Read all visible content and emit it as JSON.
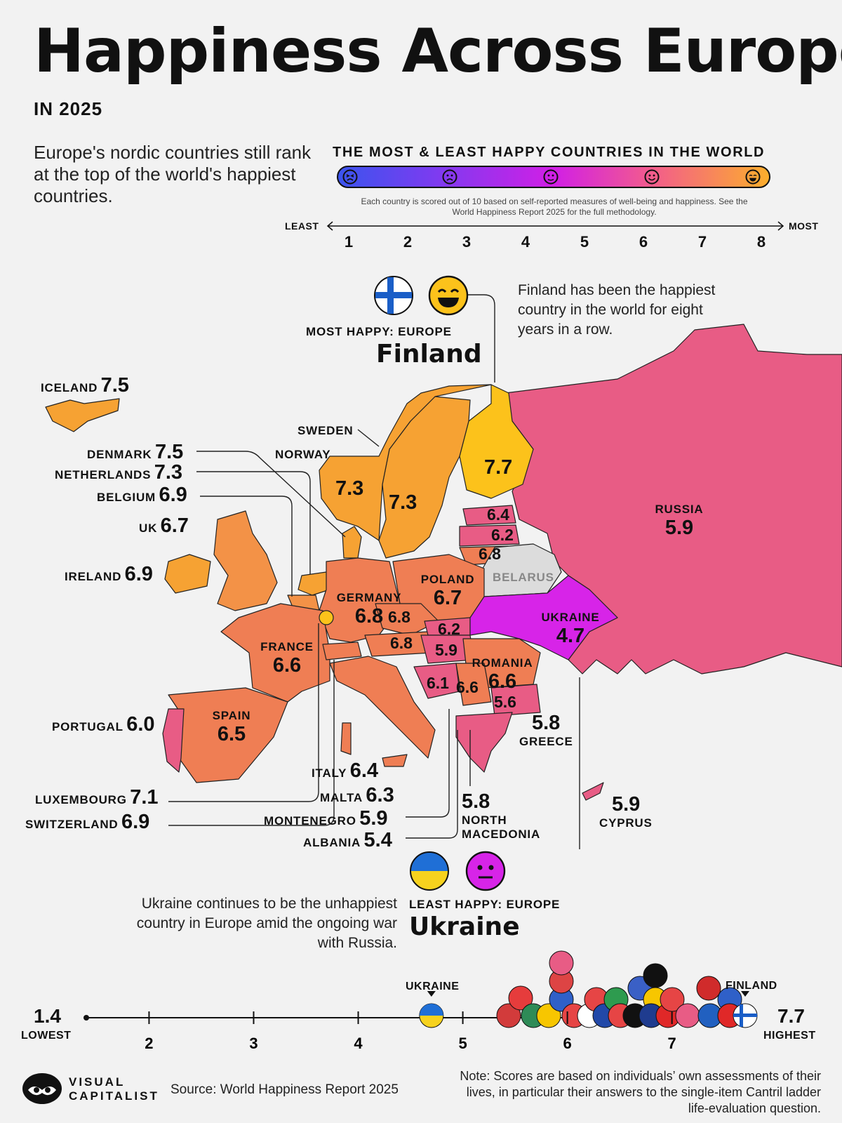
{
  "header": {
    "title": "Happiness Across Europe",
    "subtitle": "IN 2025",
    "intro": "Europe's nordic countries still rank at the top of the world's happiest countries."
  },
  "scale": {
    "title": "THE MOST & LEAST HAPPY COUNTRIES IN THE WORLD",
    "note": "Each country is scored out of 10 based on self-reported measures of well-being and happiness. See the World Happiness Report 2025 for the full methodology.",
    "least_label": "LEAST",
    "most_label": "MOST",
    "ticks": [
      "1",
      "2",
      "3",
      "4",
      "5",
      "6",
      "7",
      "8"
    ],
    "gradient_colors": [
      "#3b54ee",
      "#7b3cf0",
      "#d11fe6",
      "#f25a8f",
      "#fcae2c"
    ],
    "faces": [
      "tired-face-icon",
      "frowning-face-icon",
      "neutral-face-icon",
      "smiling-face-icon",
      "grinning-face-icon"
    ]
  },
  "callouts": {
    "most": {
      "heading": "MOST HAPPY: EUROPE",
      "country": "Finland",
      "text": "Finland has been the happiest country in the world for eight years in a row."
    },
    "least": {
      "heading": "LEAST HAPPY: EUROPE",
      "country": "Ukraine",
      "text": "Ukraine continues to be the unhappiest country in Europe amid the ongoing war with Russia."
    }
  },
  "side_labels": {
    "iceland": {
      "name": "ICELAND",
      "score": "7.5"
    },
    "denmark": {
      "name": "DENMARK",
      "score": "7.5"
    },
    "netherlands": {
      "name": "NETHERLANDS",
      "score": "7.3"
    },
    "belgium": {
      "name": "BELGIUM",
      "score": "6.9"
    },
    "uk": {
      "name": "UK",
      "score": "6.7"
    },
    "ireland": {
      "name": "IRELAND",
      "score": "6.9"
    },
    "portugal": {
      "name": "PORTUGAL",
      "score": "6.0"
    },
    "luxembourg": {
      "name": "LUXEMBOURG",
      "score": "7.1"
    },
    "switzerland": {
      "name": "SWITZERLAND",
      "score": "6.9"
    },
    "italy": {
      "name": "ITALY",
      "score": "6.4"
    },
    "malta": {
      "name": "MALTA",
      "score": "6.3"
    },
    "montenegro": {
      "name": "MONTENEGRO",
      "score": "5.9"
    },
    "albania": {
      "name": "ALBANIA",
      "score": "5.4"
    },
    "north_macedonia": {
      "name": "NORTH MACEDONIA",
      "score": "5.8"
    },
    "greece": {
      "name": "GREECE",
      "score": "5.8"
    },
    "cyprus": {
      "name": "CYPRUS",
      "score": "5.9"
    },
    "sweden": {
      "name": "SWEDEN"
    },
    "norway": {
      "name": "NORWAY"
    }
  },
  "map_labels": {
    "norway_score": "7.3",
    "sweden_score": "7.3",
    "finland_score": "7.7",
    "estonia_score": "6.4",
    "latvia_score": "6.2",
    "lithuania_score": "6.8",
    "russia": {
      "name": "RUSSIA",
      "score": "5.9"
    },
    "belarus": {
      "name": "BELARUS"
    },
    "poland": {
      "name": "POLAND",
      "score": "6.7"
    },
    "germany": {
      "name": "GERMANY",
      "score": "6.8"
    },
    "czechia_score": "6.8",
    "austria_score": "6.8",
    "slovakia_score": "6.2",
    "hungary_score": "5.9",
    "ukraine": {
      "name": "UKRAINE",
      "score": "4.7"
    },
    "romania": {
      "name": "ROMANIA",
      "score": "6.6"
    },
    "bosnia_score": "6.1",
    "serbia_score": "6.6",
    "bulgaria_score": "5.6",
    "france": {
      "name": "FRANCE",
      "score": "6.6"
    },
    "spain": {
      "name": "SPAIN",
      "score": "6.5"
    }
  },
  "dot_axis": {
    "lowest_value": "1.4",
    "lowest_label": "LOWEST",
    "highest_value": "7.7",
    "highest_label": "HIGHEST",
    "ticks": [
      "2",
      "3",
      "4",
      "5",
      "6",
      "7"
    ],
    "ukraine_label": "UKRAINE",
    "finland_label": "FINLAND",
    "range": [
      1.4,
      7.7
    ],
    "markers": [
      {
        "country": "Ukraine",
        "value": 4.7
      },
      {
        "country": "Finland",
        "value": 7.7
      }
    ]
  },
  "footer": {
    "brand_top": "VISUAL",
    "brand_bottom": "CAPITALIST",
    "source": "Source: World Happiness Report 2025",
    "note": "Note: Scores are based on individuals’ own assessments of their lives, in particular their answers to the single-item Cantril ladder life-evaluation question."
  },
  "colors": {
    "yellow": "#fcc21b",
    "orange": "#f6a233",
    "light_orange": "#f39247",
    "orange_red": "#ef7e54",
    "pink": "#e85c85",
    "magenta": "#d724e8",
    "belarus_grey": "#dcdcdc"
  }
}
